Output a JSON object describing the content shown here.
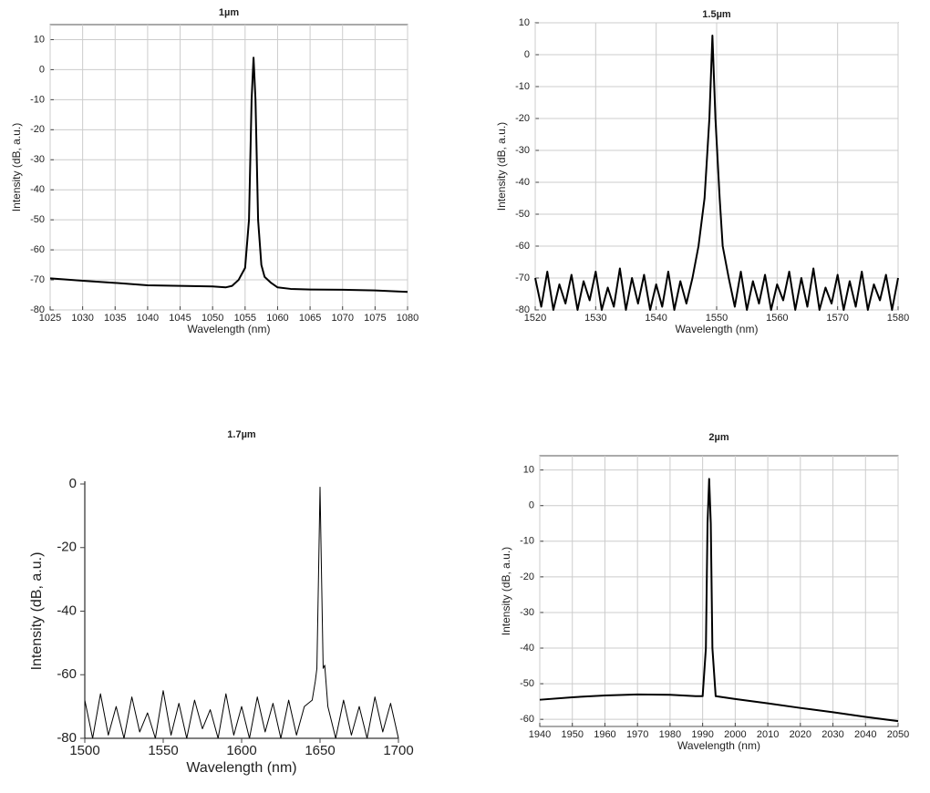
{
  "chart_data": [
    {
      "type": "line",
      "title": "1µm",
      "x_label": "Wavelength (nm)",
      "y_label": "Intensity (dB, a.u.)",
      "x": [
        1025,
        1030,
        1035,
        1040,
        1045,
        1050,
        1052,
        1053,
        1054,
        1055,
        1055.6,
        1056,
        1056.3,
        1056.6,
        1057,
        1057.5,
        1058,
        1059,
        1060,
        1062,
        1065,
        1070,
        1075,
        1080
      ],
      "series": [
        {
          "color": "#000000",
          "values": [
            -69.5,
            -70.3,
            -71,
            -71.8,
            -72,
            -72.2,
            -72.5,
            -72,
            -70,
            -66,
            -50,
            -10,
            4,
            -10,
            -50,
            -65,
            -69,
            -71,
            -72.5,
            -73,
            -73.2,
            -73.3,
            -73.5,
            -74
          ]
        }
      ],
      "xlim": [
        1025,
        1080
      ],
      "xticks": [
        1025,
        1030,
        1035,
        1040,
        1045,
        1050,
        1055,
        1060,
        1065,
        1070,
        1075,
        1080
      ],
      "ylim": [
        -80,
        15
      ],
      "yticks": [
        -80,
        -70,
        -60,
        -50,
        -40,
        -30,
        -20,
        -10,
        0,
        10
      ],
      "grid": true
    },
    {
      "type": "line",
      "title": "1.5µm",
      "x_label": "Wavelength (nm)",
      "y_label": "Intensity (dB, a.u.)",
      "x": [
        1520,
        1521,
        1522,
        1523,
        1524,
        1525,
        1526,
        1527,
        1528,
        1529,
        1530,
        1531,
        1532,
        1533,
        1534,
        1535,
        1536,
        1537,
        1538,
        1539,
        1540,
        1541,
        1542,
        1543,
        1544,
        1545,
        1546,
        1547,
        1548,
        1548.8,
        1549.3,
        1549.8,
        1550.5,
        1551,
        1552,
        1553,
        1554,
        1555,
        1556,
        1557,
        1558,
        1559,
        1560,
        1561,
        1562,
        1563,
        1564,
        1565,
        1566,
        1567,
        1568,
        1569,
        1570,
        1571,
        1572,
        1573,
        1574,
        1575,
        1576,
        1577,
        1578,
        1579,
        1580
      ],
      "series": [
        {
          "color": "#000000",
          "values": [
            -70,
            -79,
            -68,
            -80,
            -72,
            -78,
            -69,
            -80,
            -71,
            -77,
            -68,
            -80,
            -73,
            -79,
            -67,
            -80,
            -70,
            -78,
            -69,
            -80,
            -72,
            -79,
            -68,
            -80,
            -71,
            -78,
            -70,
            -60,
            -45,
            -20,
            6,
            -20,
            -45,
            -60,
            -70,
            -79,
            -68,
            -80,
            -71,
            -78,
            -69,
            -80,
            -72,
            -77,
            -68,
            -80,
            -70,
            -79,
            -67,
            -80,
            -73,
            -78,
            -69,
            -80,
            -71,
            -79,
            -68,
            -80,
            -72,
            -77,
            -69,
            -80,
            -70
          ]
        }
      ],
      "xlim": [
        1520,
        1580
      ],
      "xticks": [
        1520,
        1530,
        1540,
        1550,
        1560,
        1570,
        1580
      ],
      "ylim": [
        -80,
        10
      ],
      "yticks": [
        -80,
        -70,
        -60,
        -50,
        -40,
        -30,
        -20,
        -10,
        0,
        10
      ],
      "grid": true
    },
    {
      "type": "line",
      "title": "1.7µm",
      "x_label": "Wavelength (nm)",
      "y_label": "Intensity (dB, a.u.)",
      "x": [
        1500,
        1505,
        1510,
        1515,
        1520,
        1525,
        1530,
        1535,
        1540,
        1545,
        1550,
        1555,
        1560,
        1565,
        1570,
        1575,
        1580,
        1585,
        1590,
        1595,
        1600,
        1605,
        1610,
        1615,
        1620,
        1625,
        1630,
        1635,
        1640,
        1645,
        1647,
        1648,
        1649,
        1650,
        1651,
        1652,
        1653,
        1655,
        1660,
        1665,
        1670,
        1675,
        1680,
        1685,
        1690,
        1695,
        1700
      ],
      "series": [
        {
          "color": "#000000",
          "values": [
            -68,
            -80,
            -66,
            -79,
            -70,
            -80,
            -67,
            -78,
            -72,
            -80,
            -65,
            -79,
            -69,
            -80,
            -68,
            -77,
            -71,
            -80,
            -66,
            -79,
            -70,
            -80,
            -67,
            -78,
            -69,
            -80,
            -68,
            -79,
            -70,
            -68,
            -62,
            -58,
            -30,
            -1,
            -30,
            -58,
            -57,
            -70,
            -80,
            -68,
            -79,
            -70,
            -80,
            -67,
            -78,
            -69,
            -80
          ]
        }
      ],
      "xlim": [
        1500,
        1700
      ],
      "xticks": [
        1500,
        1550,
        1600,
        1650,
        1700
      ],
      "ylim": [
        -80,
        0
      ],
      "yticks": [
        -80,
        -60,
        -40,
        -20,
        0
      ],
      "grid": false
    },
    {
      "type": "line",
      "title": "2µm",
      "x_label": "Wavelength (nm)",
      "y_label": "Intensity (dB, a.u.)",
      "x": [
        1940,
        1950,
        1960,
        1970,
        1980,
        1988,
        1990,
        1991,
        1991.5,
        1992,
        1992.5,
        1993,
        1994,
        2000,
        2010,
        2020,
        2030,
        2040,
        2050
      ],
      "series": [
        {
          "color": "#000000",
          "values": [
            -54.5,
            -53.8,
            -53.3,
            -53,
            -53.1,
            -53.5,
            -53.5,
            -40,
            -5,
            7.5,
            -5,
            -40,
            -53.5,
            -54.3,
            -55.5,
            -56.8,
            -58,
            -59.3,
            -60.5
          ]
        }
      ],
      "xlim": [
        1940,
        2050
      ],
      "xticks": [
        1940,
        1950,
        1960,
        1970,
        1980,
        1990,
        2000,
        2010,
        2020,
        2030,
        2040,
        2050
      ],
      "ylim": [
        -62,
        14
      ],
      "yticks": [
        -60,
        -50,
        -40,
        -30,
        -20,
        -10,
        0,
        10
      ],
      "grid": true
    }
  ]
}
